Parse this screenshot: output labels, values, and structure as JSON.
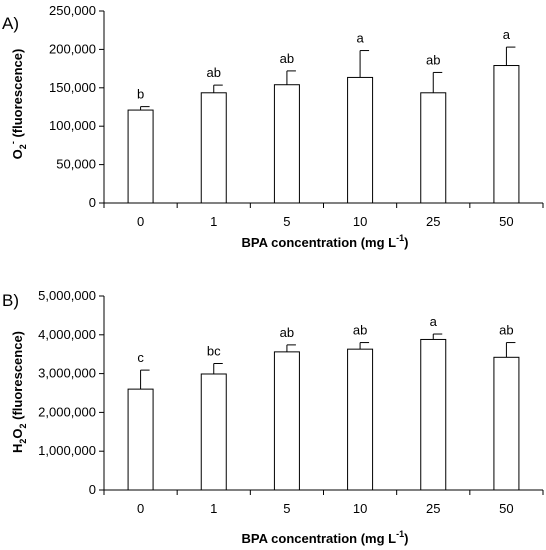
{
  "chart_data": [
    {
      "type": "bar",
      "panel_label": "A)",
      "categories": [
        "0",
        "1",
        "5",
        "10",
        "25",
        "50"
      ],
      "values": [
        121000,
        143500,
        154000,
        163500,
        143500,
        179000
      ],
      "errors": [
        4500,
        10000,
        18000,
        35000,
        26500,
        24000
      ],
      "significance": [
        "b",
        "ab",
        "ab",
        "a",
        "ab",
        "a"
      ],
      "ylim": [
        0,
        250000
      ],
      "yticks": [
        0,
        50000,
        100000,
        150000,
        200000,
        250000
      ],
      "ytick_labels": [
        "0",
        "50,000",
        "100,000",
        "150,000",
        "200,000",
        "250,000"
      ],
      "ylabel": {
        "pre": "O",
        "sub": "2",
        "sup": "-",
        "post": " (fluorescence)"
      },
      "xlabel": {
        "pre": "BPA concentration (mg L",
        "sup": "-1",
        "post": ")"
      },
      "bar_fill": "#ffffff",
      "bar_stroke": "#000000"
    },
    {
      "type": "bar",
      "panel_label": "B)",
      "categories": [
        "0",
        "1",
        "5",
        "10",
        "25",
        "50"
      ],
      "values": [
        2600000,
        2990000,
        3560000,
        3630000,
        3880000,
        3420000
      ],
      "errors": [
        490000,
        270000,
        180000,
        170000,
        140000,
        380000
      ],
      "significance": [
        "c",
        "bc",
        "ab",
        "ab",
        "a",
        "ab"
      ],
      "ylim": [
        0,
        5000000
      ],
      "yticks": [
        0,
        1000000,
        2000000,
        3000000,
        4000000,
        5000000
      ],
      "ytick_labels": [
        "0",
        "1,000,000",
        "2,000,000",
        "3,000,000",
        "4,000,000",
        "5,000,000"
      ],
      "ylabel": {
        "pre": "H",
        "sub": "2",
        "mid": "O",
        "sub2": "2",
        "post": " (fluorescence)"
      },
      "xlabel": {
        "pre": "BPA concentration (mg L",
        "sup": "-1",
        "post": ")"
      },
      "bar_fill": "#ffffff",
      "bar_stroke": "#000000"
    }
  ]
}
